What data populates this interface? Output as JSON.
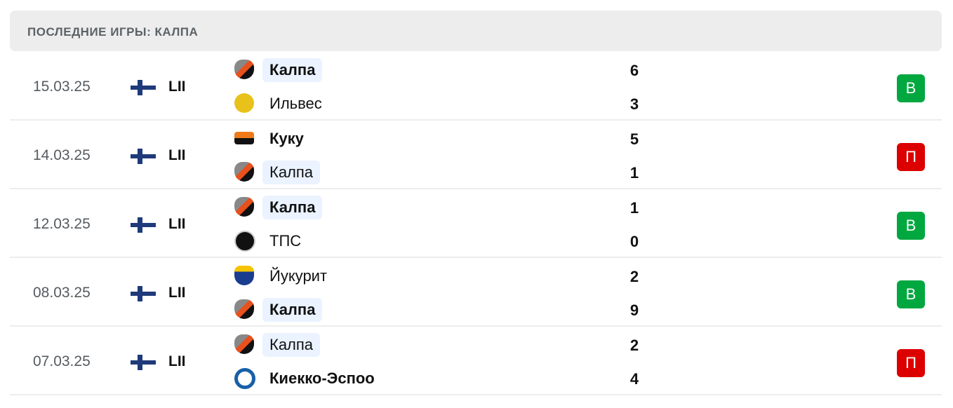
{
  "header": {
    "title": "ПОСЛЕДНИЕ ИГРЫ: КАЛПА"
  },
  "colors": {
    "win": "#00a83f",
    "loss": "#dc0000",
    "highlight": "#eaf3ff"
  },
  "matches": [
    {
      "date": "15.03.25",
      "league": "LII",
      "flag": "finland-flag",
      "home": {
        "name": "Калпа",
        "score": "6",
        "logo": "kalpa-logo",
        "bold": true,
        "highlight": true
      },
      "away": {
        "name": "Ильвес",
        "score": "3",
        "logo": "ilves-logo",
        "bold": false,
        "highlight": false
      },
      "result": "В",
      "result_type": "win"
    },
    {
      "date": "14.03.25",
      "league": "LII",
      "flag": "finland-flag",
      "home": {
        "name": "Куку",
        "score": "5",
        "logo": "kookoo-logo",
        "bold": true,
        "highlight": false
      },
      "away": {
        "name": "Калпа",
        "score": "1",
        "logo": "kalpa-logo",
        "bold": false,
        "highlight": true
      },
      "result": "П",
      "result_type": "loss"
    },
    {
      "date": "12.03.25",
      "league": "LII",
      "flag": "finland-flag",
      "home": {
        "name": "Калпа",
        "score": "1",
        "logo": "kalpa-logo",
        "bold": true,
        "highlight": true
      },
      "away": {
        "name": "ТПС",
        "score": "0",
        "logo": "tps-logo",
        "bold": false,
        "highlight": false
      },
      "result": "В",
      "result_type": "win"
    },
    {
      "date": "08.03.25",
      "league": "LII",
      "flag": "finland-flag",
      "home": {
        "name": "Йукурит",
        "score": "2",
        "logo": "jukurit-logo",
        "bold": false,
        "highlight": false
      },
      "away": {
        "name": "Калпа",
        "score": "9",
        "logo": "kalpa-logo",
        "bold": true,
        "highlight": true
      },
      "result": "В",
      "result_type": "win"
    },
    {
      "date": "07.03.25",
      "league": "LII",
      "flag": "finland-flag",
      "home": {
        "name": "Калпа",
        "score": "2",
        "logo": "kalpa-logo",
        "bold": false,
        "highlight": true
      },
      "away": {
        "name": "Киекко-Эспоо",
        "score": "4",
        "logo": "kiekko-espoo-logo",
        "bold": true,
        "highlight": false
      },
      "result": "П",
      "result_type": "loss"
    }
  ]
}
